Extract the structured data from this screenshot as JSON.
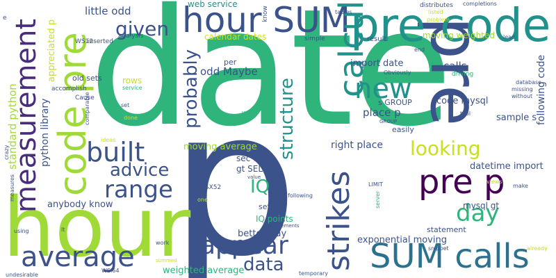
{
  "palette": {
    "dark_purple": "#440154",
    "indigo": "#472d7b",
    "slate_blue": "#3b528b",
    "steel_blue": "#2c728e",
    "teal": "#21918c",
    "sea_green": "#28ae80",
    "green": "#5ec962",
    "lime": "#addc30",
    "yellow": "#fde725"
  },
  "words": [
    {
      "text": "date",
      "color": "#2fb47c"
    },
    {
      "text": "p",
      "color": "#3b528b"
    },
    {
      "text": "hour",
      "color": "#a0da39"
    },
    {
      "text": "pre",
      "color": "#3b528b"
    },
    {
      "text": "pre code",
      "color": "#21918c"
    },
    {
      "text": "code pre",
      "color": "#a0da39"
    },
    {
      "text": "measurement",
      "color": "#472d7b"
    },
    {
      "text": "hour SUM",
      "color": "#3b528b"
    },
    {
      "text": "SUM calls",
      "color": "#2c728e"
    },
    {
      "text": "calculate",
      "color": "#21918c"
    },
    {
      "text": "strikes",
      "color": "#3b528b"
    },
    {
      "text": "new",
      "color": "#21918c"
    },
    {
      "text": "average",
      "color": "#3b528b"
    },
    {
      "text": "pre p",
      "color": "#440154"
    },
    {
      "text": "appear",
      "color": "#3b528b"
    },
    {
      "text": "built",
      "color": "#3b528b"
    },
    {
      "text": "range",
      "color": "#3b528b"
    },
    {
      "text": "advice",
      "color": "#3b528b"
    },
    {
      "text": "structure",
      "color": "#21918c"
    },
    {
      "text": "looking",
      "color": "#c8e020"
    },
    {
      "text": "probably",
      "color": "#3b528b"
    },
    {
      "text": "data",
      "color": "#3b528b"
    },
    {
      "text": "day",
      "color": "#2fb47c"
    },
    {
      "text": "given",
      "color": "#3b528b"
    },
    {
      "text": "IQ",
      "color": "#2fb47c"
    },
    {
      "text": "standard python",
      "color": "#a0da39"
    },
    {
      "text": "python library",
      "color": "#3b528b"
    },
    {
      "text": "appreciated p",
      "color": "#c8e020"
    },
    {
      "text": "little odd",
      "color": "#3b528b"
    },
    {
      "text": "web service",
      "color": "#21918c"
    },
    {
      "text": "calendar dates",
      "color": "#c8e020"
    },
    {
      "text": "moving weighted",
      "color": "#a0da39"
    },
    {
      "text": "odd Maybe",
      "color": "#3b528b"
    },
    {
      "text": "import date",
      "color": "#3b528b"
    },
    {
      "text": "calls",
      "color": "#3b528b"
    },
    {
      "text": "following code",
      "color": "#3b528b"
    },
    {
      "text": "code mysql",
      "color": "#3b528b"
    },
    {
      "text": "place p",
      "color": "#3b528b"
    },
    {
      "text": "s GROUP",
      "color": "#3b528b"
    },
    {
      "text": "sample s",
      "color": "#3b528b"
    },
    {
      "text": "moving average",
      "color": "#a0da39"
    },
    {
      "text": "right place",
      "color": "#3b528b"
    },
    {
      "text": "easily",
      "color": "#3b528b"
    },
    {
      "text": "sec code",
      "color": "#3b528b"
    },
    {
      "text": "gt SELECT",
      "color": "#3b528b"
    },
    {
      "text": "datetime import",
      "color": "#3b528b"
    },
    {
      "text": "anybody know",
      "color": "#3b528b"
    },
    {
      "text": "mysql gt",
      "color": "#3b528b"
    },
    {
      "text": "set sec",
      "color": "#3b528b"
    },
    {
      "text": "IQ points",
      "color": "#2fb47c"
    },
    {
      "text": "better way",
      "color": "#3b528b"
    },
    {
      "text": "exponential moving",
      "color": "#3b528b"
    },
    {
      "text": "weighted average",
      "color": "#2fb47c"
    },
    {
      "text": "statement",
      "color": "#3b528b"
    },
    {
      "text": "rows",
      "color": "#c8e020"
    },
    {
      "text": "old sets",
      "color": "#3b528b"
    },
    {
      "text": "accomplish",
      "color": "#3b528b"
    },
    {
      "text": "Cause",
      "color": "#3b528b"
    },
    {
      "text": "WS12",
      "color": "#3b528b"
    },
    {
      "text": "inserted",
      "color": "#3b528b"
    },
    {
      "text": "analysis",
      "color": "#3b528b"
    },
    {
      "text": "per",
      "color": "#3b528b"
    },
    {
      "text": "result",
      "color": "#3b528b"
    },
    {
      "text": "simple",
      "color": "#3b528b"
    },
    {
      "text": "know",
      "color": "#3b528b"
    },
    {
      "text": "tables",
      "color": "#3b528b"
    },
    {
      "text": "distributes",
      "color": "#3b528b"
    },
    {
      "text": "listed",
      "color": "#c8e020"
    },
    {
      "text": "problem",
      "color": "#c8e020"
    },
    {
      "text": "completions",
      "color": "#3b528b"
    },
    {
      "text": "lead",
      "color": "#3b528b"
    },
    {
      "text": "end",
      "color": "#3b528b"
    },
    {
      "text": "driving",
      "color": "#2fb47c"
    },
    {
      "text": "Obviously",
      "color": "#3b528b"
    },
    {
      "text": "database",
      "color": "#3b528b"
    },
    {
      "text": "missing",
      "color": "#3b528b"
    },
    {
      "text": "without",
      "color": "#3b528b"
    },
    {
      "text": "service",
      "color": "#2fb47c"
    },
    {
      "text": "set",
      "color": "#3b528b"
    },
    {
      "text": "done",
      "color": "#c8e020"
    },
    {
      "text": "WS04",
      "color": "#2fb47c"
    },
    {
      "text": "GROUP",
      "color": "#3b528b"
    },
    {
      "text": "tool",
      "color": "#3b528b"
    },
    {
      "text": "ideas",
      "color": "#c8e020"
    },
    {
      "text": "comparable",
      "color": "#3b528b"
    },
    {
      "text": "crazy",
      "color": "#3b528b"
    },
    {
      "text": "measures",
      "color": "#3b528b"
    },
    {
      "text": "WSX52",
      "color": "#3b528b"
    },
    {
      "text": "value",
      "color": "#3b528b"
    },
    {
      "text": "LIMIT",
      "color": "#3b528b"
    },
    {
      "text": "following",
      "color": "#3b528b"
    },
    {
      "text": "views",
      "color": "#c8e020"
    },
    {
      "text": "make",
      "color": "#3b528b"
    },
    {
      "text": "server",
      "color": "#2fb47c"
    },
    {
      "text": "one",
      "color": "#c8e020"
    },
    {
      "text": "measurements",
      "color": "#3b528b"
    },
    {
      "text": "using",
      "color": "#3b528b"
    },
    {
      "text": "lt",
      "color": "#3b528b"
    },
    {
      "text": "work",
      "color": "#3b528b"
    },
    {
      "text": "summed",
      "color": "#c8e020"
    },
    {
      "text": "WSI64",
      "color": "#3b528b"
    },
    {
      "text": "undesirable",
      "color": "#3b528b"
    },
    {
      "text": "temporary",
      "color": "#3b528b"
    },
    {
      "text": "snippet",
      "color": "#3b528b"
    },
    {
      "text": "already",
      "color": "#c8e020"
    },
    {
      "text": "e",
      "color": "#3b528b"
    }
  ]
}
